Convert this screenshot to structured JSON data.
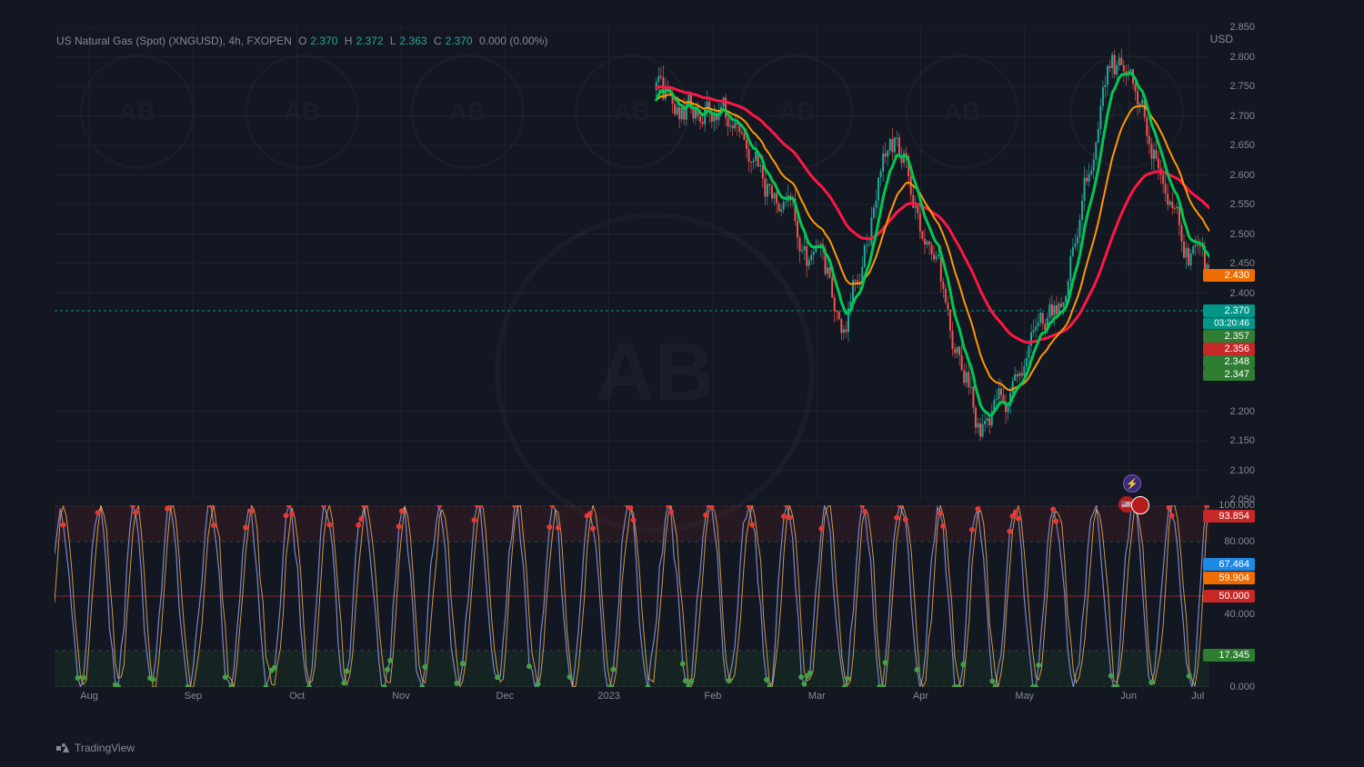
{
  "header": {
    "symbol": "US Natural Gas (Spot) (XNGUSD), 4h, FXOPEN",
    "O_label": "O",
    "O": "2.370",
    "H_label": "H",
    "H": "2.372",
    "L_label": "L",
    "L": "2.363",
    "C_label": "C",
    "C": "2.370",
    "change": "0.000 (0.00%)",
    "currency": "USD"
  },
  "footer": {
    "brand": "TradingView"
  },
  "colors": {
    "bg": "#131722",
    "grid": "#2a2e39",
    "text_dim": "#868993",
    "up": "#26a69a",
    "down": "#ef5350",
    "ma_green": "#00c853",
    "ma_red": "#ff1744",
    "ma_orange": "#ff9800",
    "osc_line": "#7986cb",
    "osc_k": "#ffb74d",
    "osc_dot_hi": "#e53935",
    "osc_dot_lo": "#43a047",
    "label_teal": "#009688",
    "label_green": "#2e7d32",
    "label_orange": "#ef6c00",
    "label_red": "#c62828",
    "label_blue": "#1e88e5"
  },
  "main_chart": {
    "ylim": [
      2.05,
      2.85
    ],
    "yticks": [
      2.85,
      2.8,
      2.75,
      2.7,
      2.65,
      2.6,
      2.55,
      2.5,
      2.45,
      2.4,
      2.2,
      2.15,
      2.1,
      2.05
    ],
    "current_price_line": 2.37,
    "labels": [
      {
        "value": "2.430",
        "y": 2.43,
        "bg": "#ef6c00"
      },
      {
        "value": "2.370",
        "y": 2.37,
        "bg": "#009688"
      },
      {
        "value": "03:20:46",
        "y": 2.347,
        "bg": "#009688",
        "small": true
      },
      {
        "value": "2.357",
        "y": 2.357,
        "bg": "#2e7d32"
      },
      {
        "value": "2.356",
        "y": 2.356,
        "bg": "#c62828"
      },
      {
        "value": "2.348",
        "y": 2.348,
        "bg": "#2e7d32"
      },
      {
        "value": "2.347",
        "y": 2.347,
        "bg": "#2e7d32"
      }
    ]
  },
  "osc_chart": {
    "ylim": [
      0,
      100
    ],
    "yticks": [
      100.0,
      80.0,
      40.0,
      0.0
    ],
    "bands": {
      "upper": 80,
      "lower": 20
    },
    "labels": [
      {
        "value": "93.854",
        "y": 93.854,
        "bg": "#c62828"
      },
      {
        "value": "67.464",
        "y": 67.464,
        "bg": "#1e88e5"
      },
      {
        "value": "59.904",
        "y": 59.904,
        "bg": "#ef6c00"
      },
      {
        "value": "50.000",
        "y": 50.0,
        "bg": "#c62828"
      },
      {
        "value": "17.345",
        "y": 17.345,
        "bg": "#2e7d32"
      }
    ]
  },
  "x_axis": {
    "ticks": [
      {
        "label": "Aug",
        "p": 0.03
      },
      {
        "label": "Sep",
        "p": 0.12
      },
      {
        "label": "Oct",
        "p": 0.21
      },
      {
        "label": "Nov",
        "p": 0.3
      },
      {
        "label": "Dec",
        "p": 0.39
      },
      {
        "label": "2023",
        "p": 0.48
      },
      {
        "label": "Feb",
        "p": 0.57
      },
      {
        "label": "Mar",
        "p": 0.66
      },
      {
        "label": "Apr",
        "p": 0.75
      },
      {
        "label": "May",
        "p": 0.84
      },
      {
        "label": "Jun",
        "p": 0.93
      },
      {
        "label": "Jul",
        "p": 0.99
      }
    ]
  },
  "candles_region": {
    "start": 0.54,
    "end": 0.97,
    "count": 280,
    "seed": 13
  },
  "ma_lines": {
    "green_fast_amp": 0.02,
    "red_slow_amp": 0.05,
    "orange_med_amp": 0.03
  }
}
